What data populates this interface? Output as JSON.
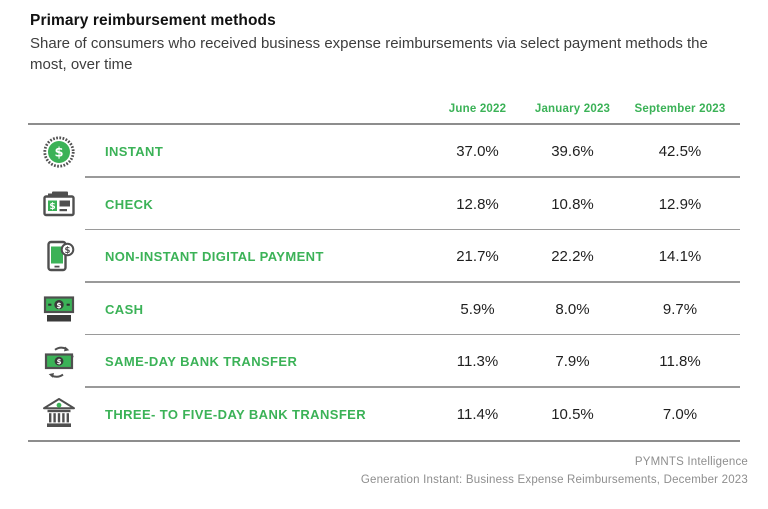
{
  "header": {
    "title": "Primary reimbursement methods",
    "subtitle": "Share of consumers who received business expense reimbursements via select payment methods the most, over time"
  },
  "table": {
    "columns": [
      "June 2022",
      "January 2023",
      "September 2023"
    ],
    "rows": [
      {
        "icon": "instant-coin-icon",
        "label": "INSTANT",
        "values": [
          "37.0%",
          "39.6%",
          "42.5%"
        ]
      },
      {
        "icon": "check-icon",
        "label": "CHECK",
        "values": [
          "12.8%",
          "10.8%",
          "12.9%"
        ]
      },
      {
        "icon": "mobile-payment-icon",
        "label": "NON-INSTANT DIGITAL PAYMENT",
        "values": [
          "21.7%",
          "22.2%",
          "14.1%"
        ]
      },
      {
        "icon": "cash-icon",
        "label": "CASH",
        "values": [
          "5.9%",
          "8.0%",
          "9.7%"
        ]
      },
      {
        "icon": "money-transfer-icon",
        "label": "SAME-DAY BANK TRANSFER",
        "values": [
          "11.3%",
          "7.9%",
          "11.8%"
        ]
      },
      {
        "icon": "bank-building-icon",
        "label": "THREE- TO FIVE-DAY BANK TRANSFER",
        "values": [
          "11.4%",
          "10.5%",
          "7.0%"
        ]
      }
    ]
  },
  "footer": {
    "source": "PYMNTS Intelligence",
    "citation": "Generation Instant: Business Expense Reimbursements, December 2023"
  },
  "colors": {
    "accent_green": "#3bb257",
    "text_dark": "#1f1f1f",
    "muted_gray": "#8e8e8e",
    "rule_gray": "#8d8d8d"
  },
  "chart_data": {
    "type": "table",
    "title": "Primary reimbursement methods",
    "subtitle": "Share of consumers who received business expense reimbursements via select payment methods the most, over time",
    "categories": [
      "June 2022",
      "January 2023",
      "September 2023"
    ],
    "series": [
      {
        "name": "Instant",
        "values": [
          37.0,
          39.6,
          42.5
        ]
      },
      {
        "name": "Check",
        "values": [
          12.8,
          10.8,
          12.9
        ]
      },
      {
        "name": "Non-instant digital payment",
        "values": [
          21.7,
          22.2,
          14.1
        ]
      },
      {
        "name": "Cash",
        "values": [
          5.9,
          8.0,
          9.7
        ]
      },
      {
        "name": "Same-day bank transfer",
        "values": [
          11.3,
          7.9,
          11.8
        ]
      },
      {
        "name": "Three- to five-day bank transfer",
        "values": [
          11.4,
          10.5,
          7.0
        ]
      }
    ],
    "unit": "%",
    "source": "PYMNTS Intelligence — Generation Instant: Business Expense Reimbursements, December 2023"
  }
}
